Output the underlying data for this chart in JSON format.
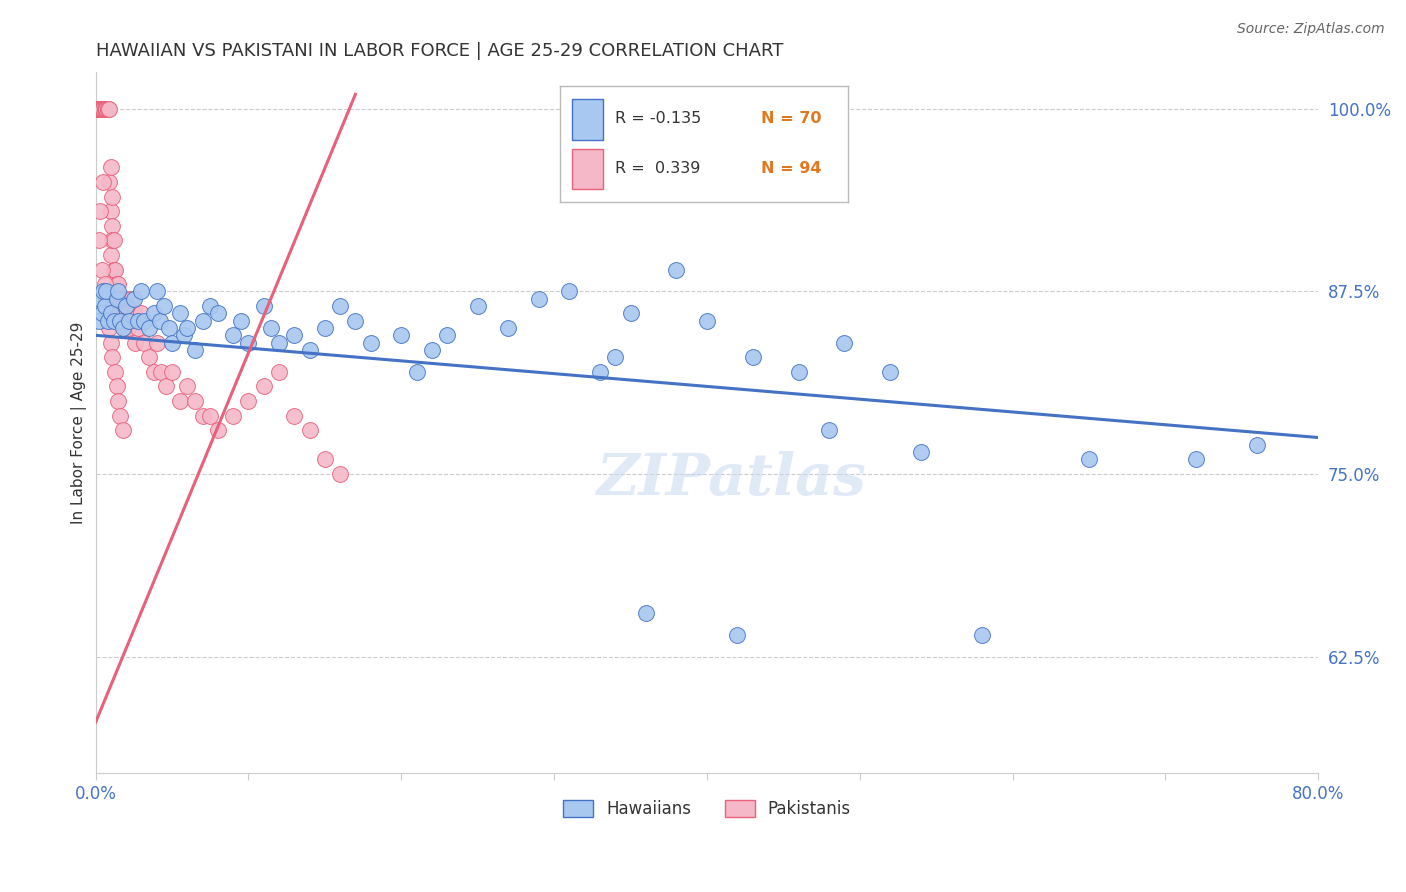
{
  "title": "HAWAIIAN VS PAKISTANI IN LABOR FORCE | AGE 25-29 CORRELATION CHART",
  "source": "Source: ZipAtlas.com",
  "ylabel": "In Labor Force | Age 25-29",
  "legend_blue_r": "R = -0.135",
  "legend_blue_n": "N = 70",
  "legend_pink_r": "R =  0.339",
  "legend_pink_n": "N = 94",
  "legend_label_blue": "Hawaiians",
  "legend_label_pink": "Pakistanis",
  "blue_color": "#a8c8f0",
  "pink_color": "#f5b8c8",
  "blue_line_color": "#4472c4",
  "pink_line_color": "#e8607a",
  "background_color": "#ffffff",
  "grid_color": "#cccccc",
  "axis_color": "#cccccc",
  "title_color": "#333333",
  "source_color": "#666666",
  "right_tick_color": "#4472c4",
  "n_color": "#e07820",
  "xlim": [
    0.0,
    0.8
  ],
  "ylim": [
    0.545,
    1.025
  ],
  "blue_regression_x0": 0.0,
  "blue_regression_y0": 0.845,
  "blue_regression_x1": 0.8,
  "blue_regression_y1": 0.775,
  "pink_regression_x0": 0.0,
  "pink_regression_y0": 0.58,
  "pink_regression_x1": 0.17,
  "pink_regression_y1": 1.01,
  "blue_x": [
    0.002,
    0.003,
    0.004,
    0.005,
    0.006,
    0.007,
    0.008,
    0.01,
    0.012,
    0.014,
    0.015,
    0.016,
    0.018,
    0.02,
    0.022,
    0.025,
    0.028,
    0.03,
    0.032,
    0.035,
    0.038,
    0.04,
    0.042,
    0.045,
    0.048,
    0.05,
    0.055,
    0.058,
    0.06,
    0.065,
    0.07,
    0.075,
    0.08,
    0.09,
    0.095,
    0.1,
    0.11,
    0.115,
    0.12,
    0.13,
    0.14,
    0.15,
    0.16,
    0.17,
    0.18,
    0.2,
    0.21,
    0.22,
    0.23,
    0.25,
    0.27,
    0.29,
    0.31,
    0.33,
    0.35,
    0.38,
    0.4,
    0.43,
    0.46,
    0.49,
    0.52,
    0.54,
    0.58,
    0.34,
    0.65,
    0.72,
    0.76,
    0.42,
    0.36,
    0.48
  ],
  "blue_y": [
    0.855,
    0.87,
    0.86,
    0.875,
    0.865,
    0.875,
    0.855,
    0.86,
    0.855,
    0.87,
    0.875,
    0.855,
    0.85,
    0.865,
    0.855,
    0.87,
    0.855,
    0.875,
    0.855,
    0.85,
    0.86,
    0.875,
    0.855,
    0.865,
    0.85,
    0.84,
    0.86,
    0.845,
    0.85,
    0.835,
    0.855,
    0.865,
    0.86,
    0.845,
    0.855,
    0.84,
    0.865,
    0.85,
    0.84,
    0.845,
    0.835,
    0.85,
    0.865,
    0.855,
    0.84,
    0.845,
    0.82,
    0.835,
    0.845,
    0.865,
    0.85,
    0.87,
    0.875,
    0.82,
    0.86,
    0.89,
    0.855,
    0.83,
    0.82,
    0.84,
    0.82,
    0.765,
    0.64,
    0.83,
    0.76,
    0.76,
    0.77,
    0.64,
    0.655,
    0.78
  ],
  "pink_x": [
    0.001,
    0.001,
    0.001,
    0.002,
    0.002,
    0.002,
    0.002,
    0.003,
    0.003,
    0.003,
    0.003,
    0.003,
    0.004,
    0.004,
    0.004,
    0.004,
    0.005,
    0.005,
    0.005,
    0.005,
    0.006,
    0.006,
    0.006,
    0.007,
    0.007,
    0.007,
    0.008,
    0.008,
    0.008,
    0.009,
    0.009,
    0.01,
    0.01,
    0.01,
    0.011,
    0.011,
    0.011,
    0.012,
    0.012,
    0.013,
    0.013,
    0.014,
    0.015,
    0.015,
    0.016,
    0.016,
    0.017,
    0.018,
    0.019,
    0.02,
    0.02,
    0.021,
    0.022,
    0.023,
    0.025,
    0.026,
    0.028,
    0.03,
    0.032,
    0.035,
    0.038,
    0.04,
    0.043,
    0.046,
    0.05,
    0.055,
    0.06,
    0.065,
    0.07,
    0.075,
    0.08,
    0.09,
    0.1,
    0.11,
    0.12,
    0.13,
    0.14,
    0.15,
    0.16,
    0.005,
    0.003,
    0.002,
    0.004,
    0.006,
    0.007,
    0.008,
    0.009,
    0.01,
    0.011,
    0.013,
    0.014,
    0.015,
    0.016,
    0.018
  ],
  "pink_y": [
    1.0,
    1.0,
    1.0,
    1.0,
    1.0,
    1.0,
    1.0,
    1.0,
    1.0,
    1.0,
    1.0,
    1.0,
    1.0,
    1.0,
    1.0,
    1.0,
    1.0,
    1.0,
    1.0,
    1.0,
    1.0,
    1.0,
    1.0,
    1.0,
    1.0,
    1.0,
    1.0,
    1.0,
    1.0,
    1.0,
    0.95,
    0.93,
    0.96,
    0.9,
    0.92,
    0.94,
    0.91,
    0.89,
    0.91,
    0.87,
    0.89,
    0.88,
    0.87,
    0.88,
    0.86,
    0.87,
    0.86,
    0.87,
    0.85,
    0.86,
    0.87,
    0.85,
    0.86,
    0.87,
    0.86,
    0.84,
    0.85,
    0.86,
    0.84,
    0.83,
    0.82,
    0.84,
    0.82,
    0.81,
    0.82,
    0.8,
    0.81,
    0.8,
    0.79,
    0.79,
    0.78,
    0.79,
    0.8,
    0.81,
    0.82,
    0.79,
    0.78,
    0.76,
    0.75,
    0.95,
    0.93,
    0.91,
    0.89,
    0.88,
    0.87,
    0.86,
    0.85,
    0.84,
    0.83,
    0.82,
    0.81,
    0.8,
    0.79,
    0.78
  ]
}
